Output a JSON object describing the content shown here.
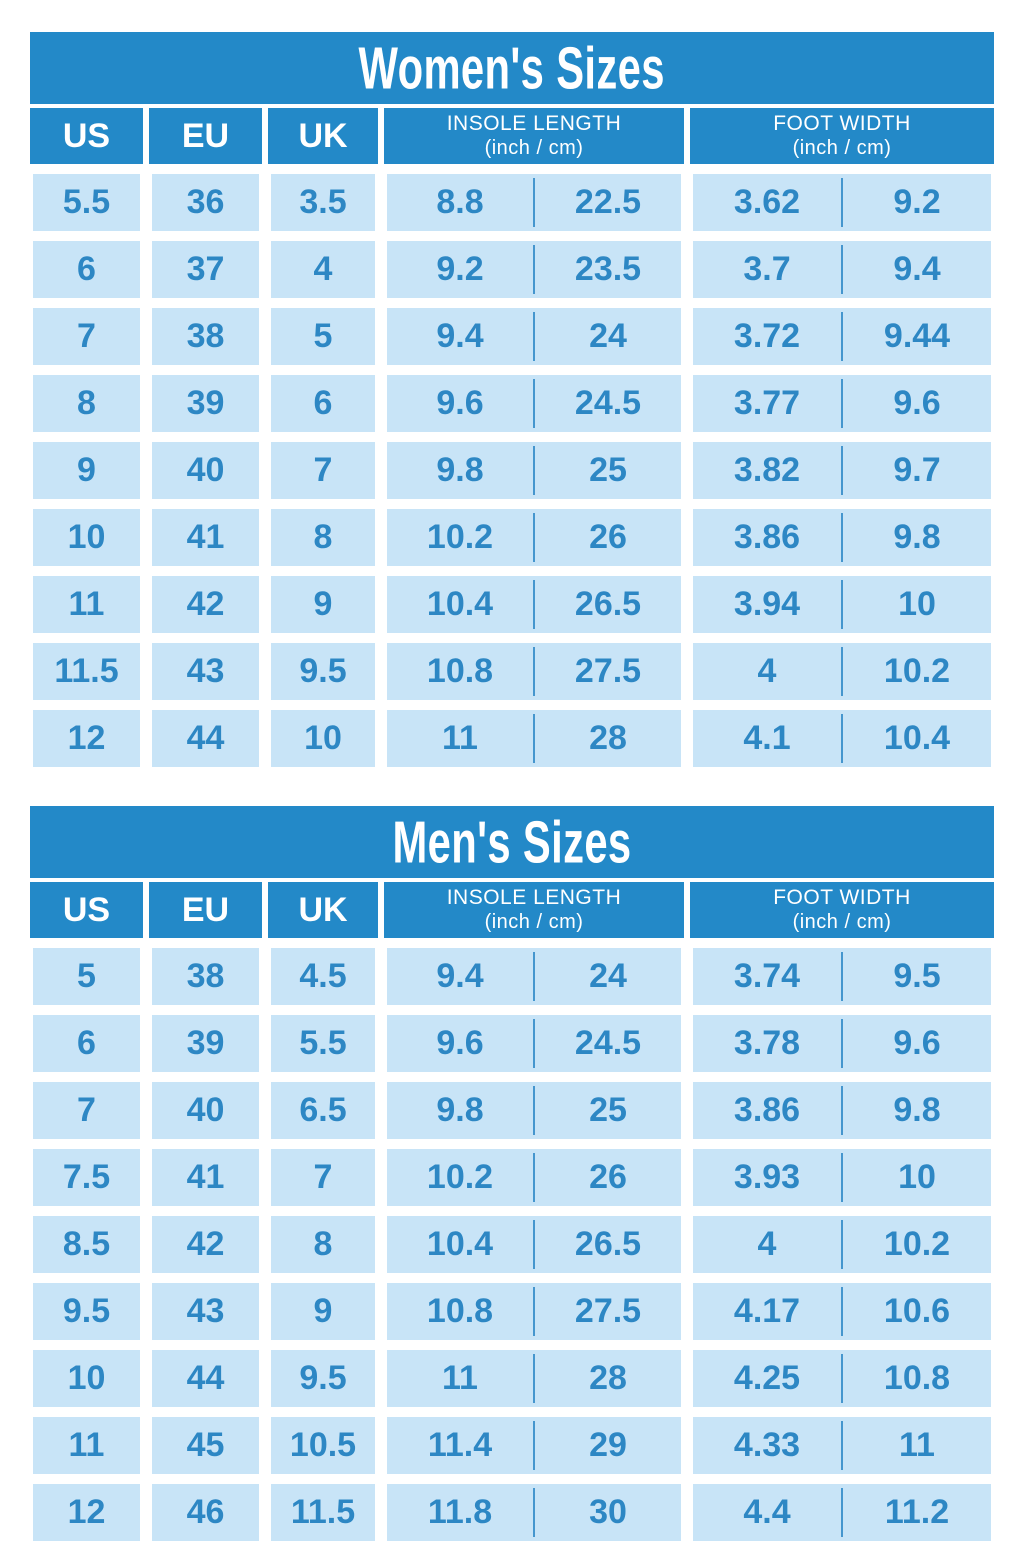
{
  "colors": {
    "header_blue": "#2389C8",
    "cell_light_blue": "#C8E4F7",
    "value_text_blue": "#2D87C4",
    "divider_blue": "#4596CE",
    "background": "#FFFFFF",
    "header_text": "#FFFFFF"
  },
  "header_labels": {
    "us": "US",
    "eu": "EU",
    "uk": "UK",
    "insole_title": "INSOLE LENGTH",
    "foot_title": "FOOT WIDTH",
    "unit_sub": "(inch / cm)"
  },
  "chart_data": [
    {
      "type": "table",
      "title": "Women's Sizes",
      "columns": [
        "US",
        "EU",
        "UK",
        "Insole Length (inch)",
        "Insole Length (cm)",
        "Foot Width (inch)",
        "Foot Width (cm)"
      ],
      "rows": [
        [
          "5.5",
          "36",
          "3.5",
          "8.8",
          "22.5",
          "3.62",
          "9.2"
        ],
        [
          "6",
          "37",
          "4",
          "9.2",
          "23.5",
          "3.7",
          "9.4"
        ],
        [
          "7",
          "38",
          "5",
          "9.4",
          "24",
          "3.72",
          "9.44"
        ],
        [
          "8",
          "39",
          "6",
          "9.6",
          "24.5",
          "3.77",
          "9.6"
        ],
        [
          "9",
          "40",
          "7",
          "9.8",
          "25",
          "3.82",
          "9.7"
        ],
        [
          "10",
          "41",
          "8",
          "10.2",
          "26",
          "3.86",
          "9.8"
        ],
        [
          "11",
          "42",
          "9",
          "10.4",
          "26.5",
          "3.94",
          "10"
        ],
        [
          "11.5",
          "43",
          "9.5",
          "10.8",
          "27.5",
          "4",
          "10.2"
        ],
        [
          "12",
          "44",
          "10",
          "11",
          "28",
          "4.1",
          "10.4"
        ]
      ]
    },
    {
      "type": "table",
      "title": "Men's Sizes",
      "columns": [
        "US",
        "EU",
        "UK",
        "Insole Length (inch)",
        "Insole Length (cm)",
        "Foot Width (inch)",
        "Foot Width (cm)"
      ],
      "rows": [
        [
          "5",
          "38",
          "4.5",
          "9.4",
          "24",
          "3.74",
          "9.5"
        ],
        [
          "6",
          "39",
          "5.5",
          "9.6",
          "24.5",
          "3.78",
          "9.6"
        ],
        [
          "7",
          "40",
          "6.5",
          "9.8",
          "25",
          "3.86",
          "9.8"
        ],
        [
          "7.5",
          "41",
          "7",
          "10.2",
          "26",
          "3.93",
          "10"
        ],
        [
          "8.5",
          "42",
          "8",
          "10.4",
          "26.5",
          "4",
          "10.2"
        ],
        [
          "9.5",
          "43",
          "9",
          "10.8",
          "27.5",
          "4.17",
          "10.6"
        ],
        [
          "10",
          "44",
          "9.5",
          "11",
          "28",
          "4.25",
          "10.8"
        ],
        [
          "11",
          "45",
          "10.5",
          "11.4",
          "29",
          "4.33",
          "11"
        ],
        [
          "12",
          "46",
          "11.5",
          "11.8",
          "30",
          "4.4",
          "11.2"
        ]
      ]
    }
  ]
}
